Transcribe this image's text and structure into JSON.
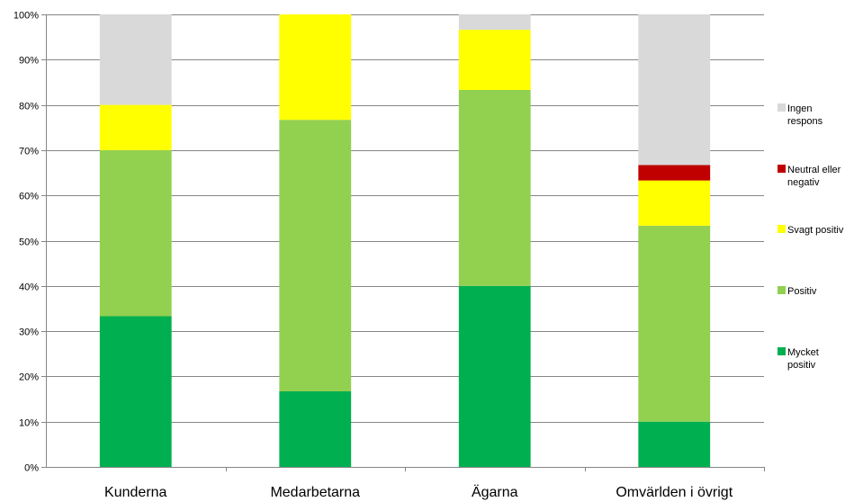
{
  "chart_data": {
    "type": "bar",
    "stacked": true,
    "percent": true,
    "categories": [
      "Kunderna",
      "Medarbetarna",
      "Ägarna",
      "Omvärlden i övrigt"
    ],
    "ylim": [
      0,
      100
    ],
    "yticks": [
      "0%",
      "10%",
      "20%",
      "30%",
      "40%",
      "50%",
      "60%",
      "70%",
      "80%",
      "90%",
      "100%"
    ],
    "grid": true,
    "legend_position": "right",
    "series": [
      {
        "name": "Mycket positiv",
        "color": "#00b050",
        "values": [
          33.3,
          16.7,
          40.0,
          10.0
        ]
      },
      {
        "name": "Positiv",
        "color": "#92d050",
        "values": [
          36.7,
          60.0,
          43.3,
          43.3
        ]
      },
      {
        "name": "Svagt positiv",
        "color": "#ffff00",
        "values": [
          10.0,
          23.3,
          13.3,
          10.0
        ]
      },
      {
        "name": "Neutral eller negativ",
        "color": "#c00000",
        "values": [
          0,
          0,
          0,
          3.4
        ]
      },
      {
        "name": "Ingen respons",
        "color": "#d9d9d9",
        "values": [
          20.0,
          0,
          3.4,
          33.3
        ]
      }
    ],
    "legend_order": [
      "Ingen respons",
      "Neutral eller negativ",
      "Svagt positiv",
      "Positiv",
      "Mycket positiv"
    ],
    "legend_lines": {
      "Ingen respons": [
        "Ingen",
        "respons"
      ],
      "Neutral eller negativ": [
        "Neutral eller",
        "negativ"
      ],
      "Svagt positiv": [
        "Svagt positiv"
      ],
      "Positiv": [
        "Positiv"
      ],
      "Mycket positiv": [
        "Mycket",
        "positiv"
      ]
    }
  }
}
